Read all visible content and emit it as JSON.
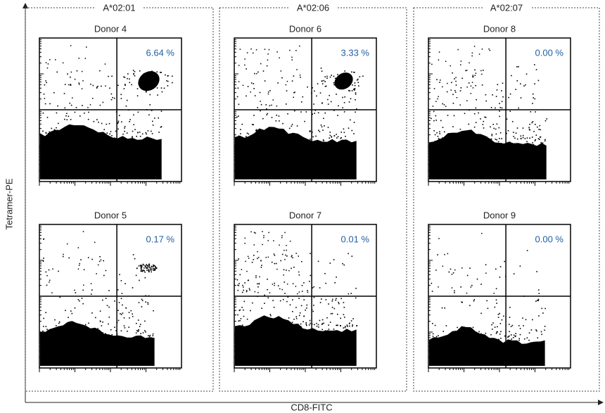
{
  "y_axis_label": "Tetramer-PE",
  "x_axis_label": "CD8-FITC",
  "groups": [
    {
      "label": "A*02:01",
      "panels": [
        {
          "title": "Donor 4",
          "percent": "6.64 %"
        },
        {
          "title": "Donor 5",
          "percent": "0.17 %"
        }
      ]
    },
    {
      "label": "A*02:06",
      "panels": [
        {
          "title": "Donor 6",
          "percent": "3.33 %"
        },
        {
          "title": "Donor 7",
          "percent": "0.01 %"
        }
      ]
    },
    {
      "label": "A*02:07",
      "panels": [
        {
          "title": "Donor 8",
          "percent": "0.00 %"
        },
        {
          "title": "Donor 9",
          "percent": "0.00 %"
        }
      ]
    }
  ]
}
